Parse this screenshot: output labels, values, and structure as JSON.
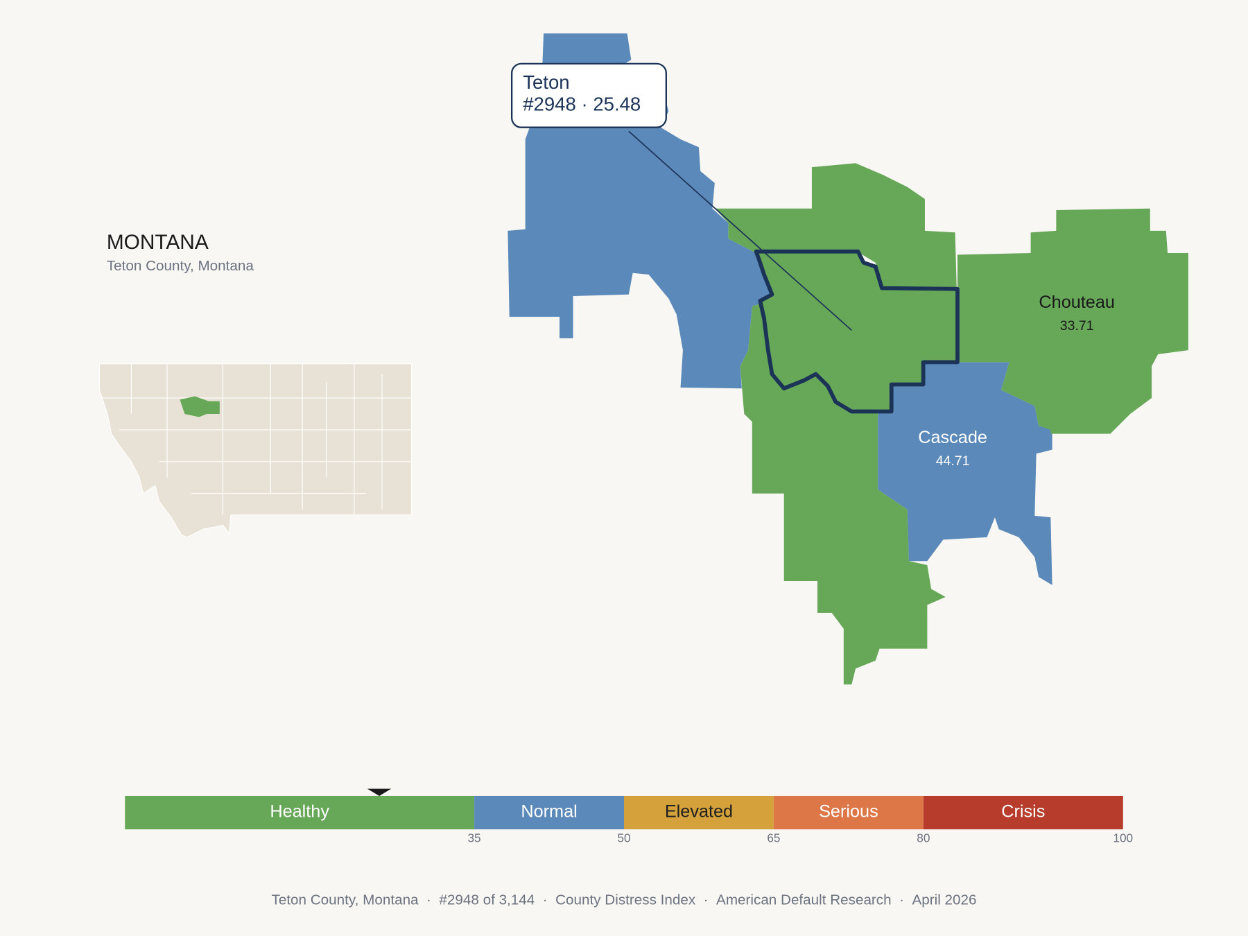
{
  "header": {
    "title": "MONTANA",
    "subtitle": "Teton County, Montana"
  },
  "separator": "·",
  "counties": [
    {
      "name": "Teton",
      "rank_label": "#2948",
      "score": 25.48
    },
    {
      "name": "Chouteau",
      "score": 33.71
    },
    {
      "name": "Cascade",
      "score": 44.71
    }
  ],
  "scale": {
    "range": [
      0,
      100
    ],
    "ticks": [
      35,
      50,
      65,
      80,
      100
    ],
    "bands": [
      {
        "label": "Healthy",
        "color": "#66a758",
        "text_color": "#ffffff"
      },
      {
        "label": "Normal",
        "color": "#5b8aba",
        "text_color": "#ffffff"
      },
      {
        "label": "Elevated",
        "color": "#d4a13a",
        "text_color": "#1f1f1f"
      },
      {
        "label": "Serious",
        "color": "#de7747",
        "text_color": "#ffffff"
      },
      {
        "label": "Crisis",
        "color": "#b83c2c",
        "text_color": "#ffffff"
      }
    ]
  },
  "footer": [
    "Teton County, Montana",
    "#2948 of 3,144",
    "County Distress Index",
    "American Default Research",
    "April 2026"
  ]
}
